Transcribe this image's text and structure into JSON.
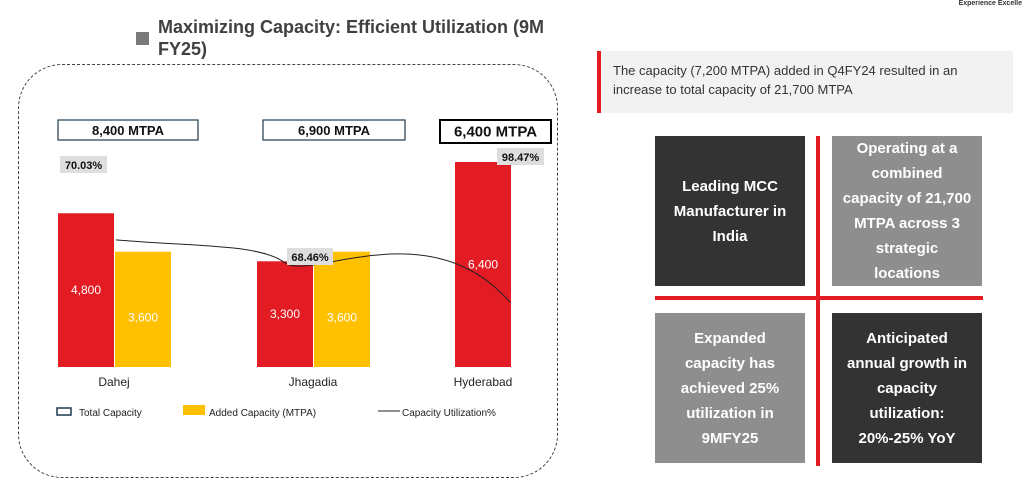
{
  "header": {
    "title": "Maximizing Capacity: Efficient Utilization (9M FY25)",
    "tagline": "Experience Excelle"
  },
  "info_note": "The capacity (7,200 MTPA) added in Q4FY24 resulted in an increase to total capacity of 21,700 MTPA",
  "quadrants": [
    {
      "text": "Leading MCC Manufacturer in India",
      "style": "dark"
    },
    {
      "text": "Operating at a combined capacity of 21,700 MTPA across 3 strategic locations",
      "style": "gray"
    },
    {
      "text": "Expanded capacity has achieved 25% utilization in 9MFY25",
      "style": "gray"
    },
    {
      "text": "Anticipated annual growth in capacity utilization: 20%-25% YoY",
      "style": "dark"
    }
  ],
  "colors": {
    "accent": "#e31b23",
    "added": "#ffc000",
    "dark_tile": "#333333",
    "gray_tile": "#8e8e8e"
  },
  "chart_data": {
    "type": "bar",
    "categories": [
      "Dahej",
      "Jhagadia",
      "Hyderabad"
    ],
    "total_capacity_labels": [
      "8,400 MTPA",
      "6,900 MTPA",
      "6,400 MTPA"
    ],
    "series": [
      {
        "name": "Total Capacity",
        "values": [
          4800,
          3300,
          6400
        ],
        "value_labels": [
          "4,800",
          "3,300",
          "6,400"
        ],
        "color": "#e31b23"
      },
      {
        "name": "Added Capacity (MTPA)",
        "values": [
          3600,
          3600,
          null
        ],
        "value_labels": [
          "3,600",
          "3,600",
          ""
        ],
        "color": "#ffc000"
      }
    ],
    "utilization": {
      "name": "Capacity Utilization%",
      "values": [
        70.03,
        68.46,
        98.47
      ],
      "labels": [
        "70.03%",
        "68.46%",
        "98.47%"
      ]
    },
    "ylim": [
      0,
      7000
    ],
    "legend": [
      "Total Capacity",
      "Added Capacity (MTPA)",
      "Capacity Utilization%"
    ]
  }
}
